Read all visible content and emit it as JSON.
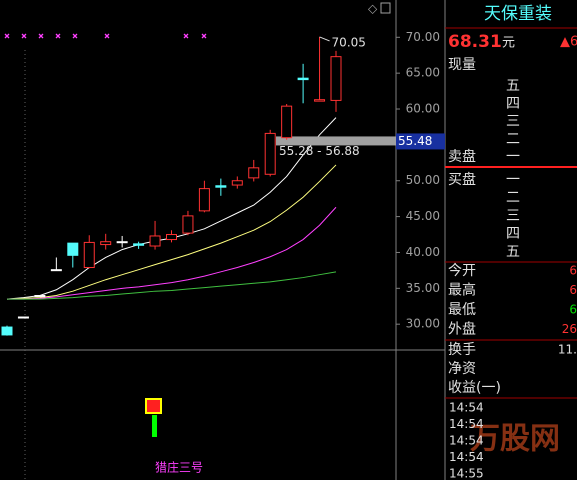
{
  "chart": {
    "type": "candlestick",
    "ylim": [
      26.4,
      75.2
    ],
    "yticks": [
      {
        "value": 70,
        "label": "70.00"
      },
      {
        "value": 65,
        "label": "65.00"
      },
      {
        "value": 60,
        "label": "60.00"
      },
      {
        "value": 55,
        "label": "55.00"
      },
      {
        "value": 50,
        "label": "50.00"
      },
      {
        "value": 45,
        "label": "45.00"
      },
      {
        "value": 40,
        "label": "40.00"
      },
      {
        "value": 35,
        "label": "35.00"
      },
      {
        "value": 30,
        "label": "30.00"
      }
    ],
    "candles": {
      "open": [
        29.6,
        31.0,
        34.0,
        37.6,
        41.3,
        37.9,
        41.1,
        41.5,
        41.2,
        40.9,
        41.8,
        42.7,
        45.8,
        49.3,
        49.4,
        50.4,
        50.9,
        56.0,
        64.3,
        61.1,
        61.2
      ],
      "high": [
        29.8,
        31.0,
        34.0,
        39.3,
        41.3,
        42.4,
        42.6,
        42.3,
        41.5,
        44.4,
        43.1,
        45.8,
        50.0,
        50.3,
        50.6,
        52.9,
        57.1,
        60.7,
        66.3,
        70.05,
        68.1
      ],
      "low": [
        28.4,
        31.0,
        34.0,
        37.6,
        37.9,
        37.8,
        40.4,
        40.7,
        40.5,
        40.4,
        41.4,
        42.4,
        45.6,
        47.9,
        48.9,
        49.9,
        50.6,
        55.7,
        60.8,
        61.1,
        59.6
      ],
      "close": [
        28.5,
        31.0,
        34.0,
        37.6,
        39.6,
        41.4,
        41.5,
        41.5,
        41.0,
        42.3,
        42.5,
        45.1,
        48.9,
        49.1,
        50.0,
        51.8,
        56.6,
        60.4,
        64.1,
        61.3,
        67.3
      ]
    },
    "series": [
      {
        "color": "#ffffff",
        "values": [
          33.5,
          33.7,
          34.0,
          34.8,
          36.2,
          37.9,
          39.3,
          40.4,
          41.1,
          41.6,
          42.0,
          42.6,
          43.3,
          44.4,
          45.5,
          46.6,
          48.4,
          50.6,
          53.6,
          56.4,
          58.8
        ]
      },
      {
        "color": "#ffff80",
        "values": [
          33.5,
          33.6,
          33.7,
          34.0,
          34.6,
          35.4,
          36.2,
          36.9,
          37.6,
          38.3,
          39.0,
          39.7,
          40.5,
          41.3,
          42.2,
          43.1,
          44.3,
          45.9,
          47.7,
          49.9,
          52.2
        ]
      },
      {
        "color": "#ff40ff",
        "values": [
          33.5,
          33.5,
          33.6,
          33.8,
          34.1,
          34.4,
          34.7,
          35.0,
          35.2,
          35.5,
          35.8,
          36.2,
          36.7,
          37.3,
          37.9,
          38.6,
          39.4,
          40.4,
          41.8,
          43.8,
          46.3
        ]
      },
      {
        "color": "#40c040",
        "values": [
          33.5,
          33.5,
          33.5,
          33.6,
          33.7,
          33.9,
          34.0,
          34.2,
          34.4,
          34.6,
          34.7,
          34.9,
          35.1,
          35.3,
          35.5,
          35.7,
          35.9,
          36.2,
          36.5,
          36.9,
          37.3
        ]
      }
    ],
    "price_marker": {
      "value": 55.48,
      "label": "55.48"
    },
    "range_label": "55.28 - 56.88",
    "high_label": {
      "value": 70.05,
      "label": "70.05"
    }
  },
  "indicator": {
    "name": "猎庄三号"
  },
  "quote": {
    "title": "天保重装",
    "price": "68.31",
    "unit": "元",
    "change": "▲6",
    "volume_label": "现量",
    "sell_levels": [
      "五",
      "四",
      "三",
      "二",
      "一"
    ],
    "sell_label": "卖盘",
    "buy_label": "买盘",
    "buy_levels": [
      "一",
      "二",
      "三",
      "四",
      "五"
    ],
    "stats": [
      {
        "label": "今开",
        "value": "6"
      },
      {
        "label": "最高",
        "value": "6"
      },
      {
        "label": "最低",
        "value": "6"
      },
      {
        "label": "外盘",
        "value": "26"
      }
    ],
    "more": [
      {
        "label": "换手",
        "value": "11."
      },
      {
        "label": "净资"
      },
      {
        "label": "收益(一)"
      }
    ],
    "times": [
      "14:54",
      "14:54",
      "14:54",
      "14:54",
      "14:55"
    ]
  },
  "watermark": "万股网"
}
